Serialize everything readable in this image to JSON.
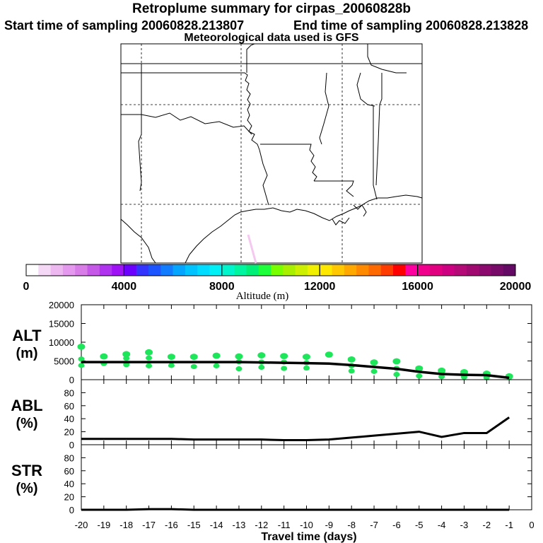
{
  "header": {
    "title": "Retroplume summary for cirpas_20060828b",
    "start_label": "Start time of sampling 20060828.213807",
    "end_label": "End time of sampling 20060828.213828",
    "met_label": "Meteorological data used is GFS"
  },
  "colorbar": {
    "tick_labels": [
      "0",
      "4000",
      "8000",
      "12000",
      "16000",
      "20000"
    ],
    "label": "Altitude (m)",
    "colors": [
      "#ffffff",
      "#f5d8f5",
      "#edb8f0",
      "#e498ee",
      "#d87ce8",
      "#c658e8",
      "#b033f0",
      "#9f12f5",
      "#6b00ff",
      "#3434ff",
      "#1c55ff",
      "#117cff",
      "#03a5ff",
      "#00c3ff",
      "#00dcff",
      "#00f0f5",
      "#00f5cc",
      "#00f5a0",
      "#00f077",
      "#1eff3c",
      "#78ff00",
      "#a8f000",
      "#cdf000",
      "#f0f000",
      "#ffe800",
      "#ffc800",
      "#ffa800",
      "#ff8a00",
      "#ff6a00",
      "#ff3c00",
      "#ff0000",
      "#ff00a0",
      "#f0008c",
      "#e00080",
      "#cc0080",
      "#b40a78",
      "#a00a70",
      "#8c0a6e",
      "#780a6a",
      "#640a64"
    ]
  },
  "chart_data": [
    {
      "type": "scatter",
      "panel": "ALT",
      "ylabel_line1": "ALT",
      "ylabel_line2": "(m)",
      "ylim": [
        0,
        20000
      ],
      "yticks": [
        "0",
        "5000",
        "10000",
        "15000",
        "20000"
      ],
      "mean_line": {
        "x": [
          -20,
          -19,
          -18,
          -17,
          -16,
          -15,
          -14,
          -13,
          -12,
          -11,
          -10,
          -9,
          -8,
          -7,
          -6,
          -5,
          -4,
          -3,
          -2,
          -1
        ],
        "y": [
          4700,
          4700,
          4700,
          4700,
          4700,
          4700,
          4700,
          4700,
          4600,
          4500,
          4400,
          4300,
          3900,
          3400,
          2900,
          2100,
          1500,
          1300,
          1200,
          500
        ]
      },
      "points": [
        {
          "x": -20,
          "y": [
            8800,
            5500,
            3800
          ]
        },
        {
          "x": -19,
          "y": [
            6200,
            4300
          ]
        },
        {
          "x": -18,
          "y": [
            6800,
            5700,
            4000
          ]
        },
        {
          "x": -17,
          "y": [
            7300,
            5800,
            3700
          ]
        },
        {
          "x": -16,
          "y": [
            6100,
            3800
          ]
        },
        {
          "x": -15,
          "y": [
            6100,
            3500
          ]
        },
        {
          "x": -14,
          "y": [
            6400,
            3700
          ]
        },
        {
          "x": -13,
          "y": [
            6200,
            4800,
            2900
          ]
        },
        {
          "x": -12,
          "y": [
            6500,
            4700,
            3300
          ]
        },
        {
          "x": -11,
          "y": [
            6300,
            4700,
            3000
          ]
        },
        {
          "x": -10,
          "y": [
            6100,
            4500,
            3100
          ]
        },
        {
          "x": -9,
          "y": [
            6700
          ]
        },
        {
          "x": -8,
          "y": [
            5400,
            3700,
            2300
          ]
        },
        {
          "x": -7,
          "y": [
            4600,
            2200
          ]
        },
        {
          "x": -6,
          "y": [
            4900,
            3000,
            1400
          ]
        },
        {
          "x": -5,
          "y": [
            3000,
            1000
          ]
        },
        {
          "x": -4,
          "y": [
            2400,
            800
          ]
        },
        {
          "x": -3,
          "y": [
            2000,
            700
          ]
        },
        {
          "x": -2,
          "y": [
            1600,
            600
          ]
        },
        {
          "x": -1,
          "y": [
            900,
            600
          ]
        }
      ]
    },
    {
      "type": "line",
      "panel": "ABL",
      "ylabel_line1": "ABL",
      "ylabel_line2": "(%)",
      "ylim": [
        0,
        100
      ],
      "yticks": [
        "0",
        "20",
        "40",
        "60",
        "80"
      ],
      "x": [
        -20,
        -19,
        -18,
        -17,
        -16,
        -15,
        -14,
        -13,
        -12,
        -11,
        -10,
        -9,
        -8,
        -7,
        -6,
        -5,
        -4,
        -3,
        -2,
        -1
      ],
      "y": [
        9,
        9,
        9,
        9,
        9,
        8,
        8,
        8,
        8,
        7,
        7,
        8,
        11,
        14,
        17,
        20,
        12,
        18,
        18,
        42
      ]
    },
    {
      "type": "line",
      "panel": "STR",
      "ylabel_line1": "STR",
      "ylabel_line2": "(%)",
      "ylim": [
        0,
        100
      ],
      "yticks": [
        "0",
        "20",
        "40",
        "60",
        "80"
      ],
      "x": [
        -20,
        -19,
        -18,
        -17,
        -16,
        -15,
        -14,
        -13,
        -12,
        -11,
        -10,
        -9,
        -8,
        -7,
        -6,
        -5,
        -4,
        -3,
        -2,
        -1
      ],
      "y": [
        0,
        0,
        0,
        1,
        1,
        0,
        0,
        0,
        0,
        0,
        0,
        0,
        0,
        0,
        0,
        0,
        0,
        0,
        0,
        0
      ]
    }
  ],
  "xaxis": {
    "label": "Travel time (days)",
    "ticks": [
      "-20",
      "-19",
      "-18",
      "-17",
      "-16",
      "-15",
      "-14",
      "-13",
      "-12",
      "-11",
      "-10",
      "-9",
      "-8",
      "-7",
      "-6",
      "-5",
      "-4",
      "-3",
      "-2",
      "-1",
      "0"
    ]
  },
  "map": {
    "plume_color": "#f5c8f0"
  }
}
